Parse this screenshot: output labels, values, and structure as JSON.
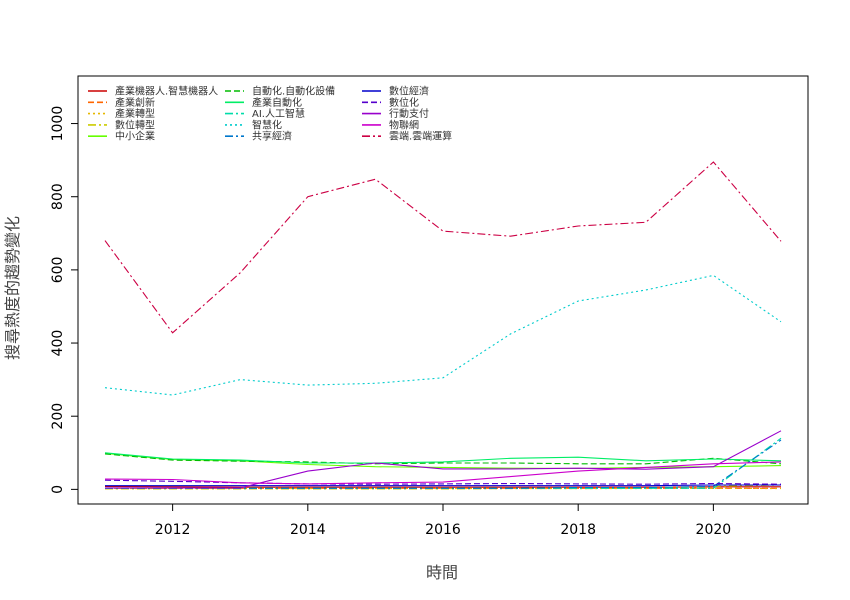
{
  "chart_data": {
    "type": "line",
    "xlabel": "時間",
    "ylabel": "搜尋熱度的趨勢變化",
    "xlim": [
      2010.6,
      2021.4
    ],
    "ylim": [
      -40,
      1130
    ],
    "x_ticks": [
      2012,
      2014,
      2016,
      2018,
      2020
    ],
    "y_ticks": [
      0,
      200,
      400,
      600,
      800,
      1000
    ],
    "grid": false,
    "legend_position": "top-left",
    "x": [
      2011,
      2012,
      2013,
      2014,
      2015,
      2016,
      2017,
      2018,
      2019,
      2020,
      2021
    ],
    "series": [
      {
        "name": "產業機器人.智慧機器人",
        "color": "#cc0000",
        "dash": "solid",
        "values": [
          8,
          7,
          6,
          6,
          6,
          6,
          6,
          6,
          6,
          7,
          7
        ]
      },
      {
        "name": "產業創新",
        "color": "#ff6600",
        "dash": "6,3",
        "values": [
          3,
          3,
          3,
          3,
          3,
          3,
          3,
          3,
          3,
          3,
          3
        ]
      },
      {
        "name": "產業轉型",
        "color": "#e6b800",
        "dash": "2,3",
        "values": [
          2,
          2,
          2,
          2,
          2,
          2,
          2,
          2,
          2,
          3,
          2
        ]
      },
      {
        "name": "數位轉型",
        "color": "#cccc00",
        "dash": "8,3,2,3",
        "values": [
          1,
          1,
          1,
          1,
          1,
          1,
          2,
          2,
          3,
          8,
          12
        ]
      },
      {
        "name": "中小企業",
        "color": "#66ff00",
        "dash": "solid",
        "values": [
          98,
          82,
          78,
          68,
          62,
          60,
          58,
          57,
          60,
          62,
          65
        ]
      },
      {
        "name": "自動化.自動化設備",
        "color": "#00bb00",
        "dash": "6,3",
        "values": [
          97,
          80,
          77,
          75,
          70,
          72,
          72,
          70,
          70,
          85,
          70
        ]
      },
      {
        "name": "產業自動化",
        "color": "#00ee66",
        "dash": "solid",
        "values": [
          100,
          83,
          80,
          72,
          72,
          75,
          85,
          88,
          78,
          83,
          78
        ]
      },
      {
        "name": "AI.人工智慧",
        "color": "#00ddaa",
        "dash": "8,3,2,3",
        "values": [
          3,
          3,
          3,
          3,
          3,
          3,
          3,
          3,
          3,
          3,
          140
        ]
      },
      {
        "name": "智慧化",
        "color": "#00cccc",
        "dash": "2,3",
        "values": [
          278,
          258,
          300,
          285,
          290,
          305,
          425,
          515,
          545,
          585,
          458
        ]
      },
      {
        "name": "共享經濟",
        "color": "#0077cc",
        "dash": "8,3,2,3",
        "values": [
          3,
          3,
          3,
          3,
          3,
          3,
          3,
          5,
          5,
          8,
          135
        ]
      },
      {
        "name": "數位經濟",
        "color": "#0000cc",
        "dash": "solid",
        "values": [
          10,
          10,
          10,
          10,
          10,
          10,
          10,
          10,
          10,
          12,
          12
        ]
      },
      {
        "name": "數位化",
        "color": "#5500cc",
        "dash": "6,3",
        "values": [
          25,
          22,
          18,
          15,
          14,
          15,
          16,
          15,
          14,
          16,
          14
        ]
      },
      {
        "name": "行動支付",
        "color": "#9900cc",
        "dash": "solid",
        "values": [
          4,
          4,
          4,
          50,
          72,
          56,
          56,
          58,
          55,
          62,
          160
        ]
      },
      {
        "name": "物聯網",
        "color": "#cc00cc",
        "dash": "solid",
        "values": [
          28,
          27,
          18,
          15,
          18,
          20,
          35,
          50,
          60,
          70,
          75
        ]
      },
      {
        "name": "雲端.雲端運算",
        "color": "#cc0044",
        "dash": "8,3,2,3",
        "values": [
          680,
          428,
          592,
          800,
          848,
          706,
          692,
          720,
          730,
          895,
          678
        ]
      }
    ]
  }
}
